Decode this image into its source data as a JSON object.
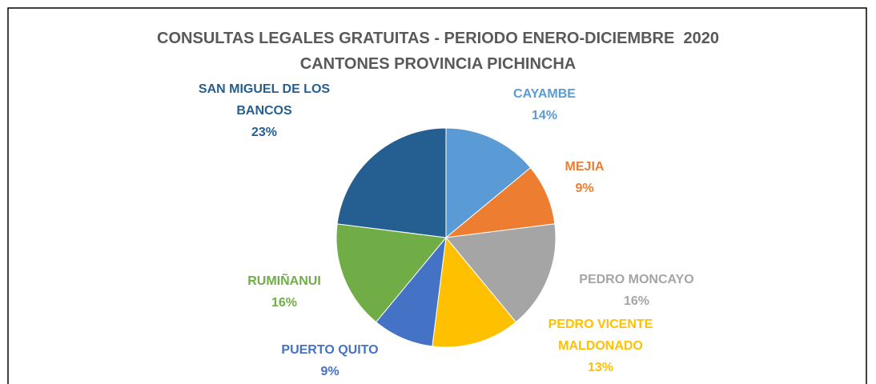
{
  "chart_data": {
    "type": "pie",
    "title": "CONSULTAS LEGALES GRATUITAS - PERIODO ENERO-DICIEMBRE  2020",
    "subtitle": "CANTONES PROVINCIA PICHINCHA",
    "categories": [
      "CAYAMBE",
      "MEJIA",
      "PEDRO MONCAYO",
      "PEDRO VICENTE MALDONADO",
      "PUERTO QUITO",
      "RUMIÑANUI",
      "SAN MIGUEL DE LOS BANCOS"
    ],
    "values": [
      14,
      9,
      16,
      13,
      9,
      16,
      23
    ],
    "value_labels": [
      "14%",
      "9%",
      "16%",
      "13%",
      "9%",
      "16%",
      "23%"
    ],
    "colors": [
      "#5b9bd5",
      "#ed7d31",
      "#a5a5a5",
      "#ffc000",
      "#4472c4",
      "#70ad47",
      "#255e91"
    ]
  }
}
